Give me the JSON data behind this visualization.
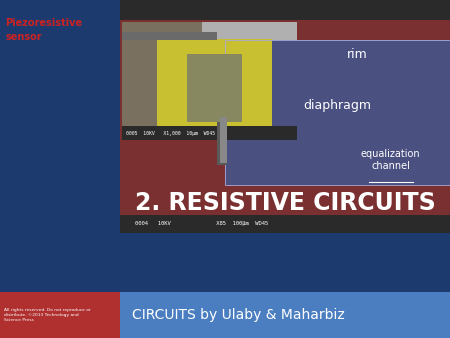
{
  "title": "2. RESISTIVE CIRCUITS",
  "subtitle": "CIRCUITS by Ulaby & Maharbiz",
  "label_top_left": "Piezoresistive\nsensor",
  "label_rim": "rim",
  "label_diaphragm": "diaphragm",
  "label_channel": "equalization\nchannel",
  "footer_text": "All rights reserved. Do not reproduce or\ndistribute. ©2013 Technology and\nScience Press",
  "bg_dark_blue": "#1C3A6E",
  "bg_light_blue": "#4A7EC0",
  "red_accent": "#B03030",
  "title_color": "#FFFFFF",
  "subtitle_color": "#FFFFFF",
  "label_color_red": "#CC2222",
  "label_color_white": "#FFFFFF",
  "sem_bg": "#6a6a6a",
  "sem_dark": "#2a2a2a",
  "sem_rim": "#7a3030",
  "sem_diaphragm": "#4a5080",
  "sem_inset_bg": "#7a7060",
  "sem_inset_yellow": "#c8c030",
  "sem_inset_inner": "#888860",
  "title_fontsize": 17,
  "subtitle_fontsize": 10,
  "sensor_label_fontsize": 7
}
